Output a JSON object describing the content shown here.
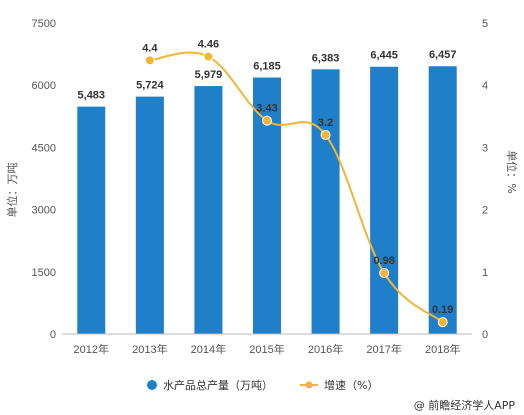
{
  "chart_data": {
    "type": "bar",
    "categories": [
      "2012年",
      "2013年",
      "2014年",
      "2015年",
      "2016年",
      "2017年",
      "2018年"
    ],
    "series": [
      {
        "name": "水产品总产量（万吨）",
        "type": "bar",
        "axis": "left",
        "color": "#1f7fc8",
        "values": [
          5483,
          5724,
          5979,
          6185,
          6383,
          6445,
          6457
        ],
        "labels": [
          "5,483",
          "5,724",
          "5,979",
          "6,185",
          "6,383",
          "6,445",
          "6,457"
        ]
      },
      {
        "name": "增速（%）",
        "type": "line",
        "axis": "right",
        "color": "#f2b534",
        "values": [
          null,
          4.4,
          4.46,
          3.43,
          3.2,
          0.98,
          0.19
        ],
        "labels": [
          "",
          "4.4",
          "4.46",
          "3.43",
          "3.2",
          "0.98",
          "0.19"
        ]
      }
    ],
    "ylabel": "单位：万吨",
    "ylabel_right": "单位：%",
    "ylim": [
      0,
      7500
    ],
    "yticks": [
      "0",
      "1500",
      "3000",
      "4500",
      "6000",
      "7500"
    ],
    "ylim_right": [
      0,
      5
    ],
    "yticks_right": [
      "0",
      "1",
      "2",
      "3",
      "4",
      "5"
    ],
    "grid": false,
    "legend_position": "bottom",
    "source": "@ 前瞻经济学人APP"
  }
}
